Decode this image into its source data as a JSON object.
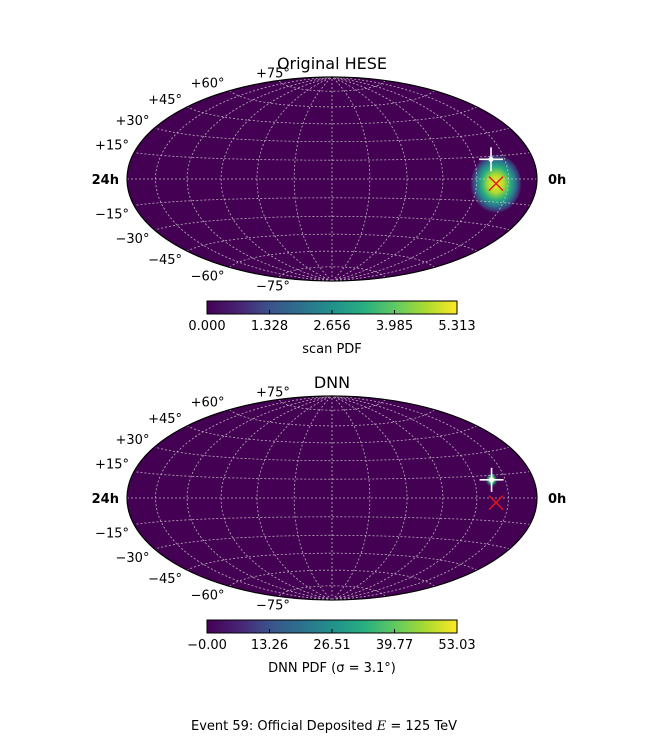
{
  "chart_data": [
    {
      "type": "heatmap",
      "projection": "aitoff",
      "title": "Original HESE",
      "ra_labels": {
        "left": "24h",
        "right": "0h"
      },
      "dec_labels": [
        "+75°",
        "+60°",
        "+45°",
        "+30°",
        "+15°",
        "−15°",
        "−30°",
        "−45°",
        "−60°",
        "−75°"
      ],
      "colorbar": {
        "label": "scan PDF",
        "ticks": [
          "0.000",
          "1.328",
          "2.656",
          "3.985",
          "5.313"
        ],
        "range": [
          0,
          5.313
        ]
      },
      "hotspot": {
        "ra_h": 2.8,
        "dec_deg": -3,
        "peak": 5.313,
        "spread_deg": 12
      },
      "truth_marker": {
        "ra_h": 2.8,
        "dec_deg": -3,
        "symbol": "x",
        "color": "#e8141e"
      },
      "reco_marker": {
        "ra_h": 2.9,
        "dec_deg": 13,
        "symbol": "+",
        "color": "#ffffff"
      },
      "grid": true
    },
    {
      "type": "heatmap",
      "projection": "aitoff",
      "title": "DNN",
      "ra_labels": {
        "left": "24h",
        "right": "0h"
      },
      "dec_labels": [
        "+75°",
        "+60°",
        "+45°",
        "+30°",
        "+15°",
        "−15°",
        "−30°",
        "−45°",
        "−60°",
        "−75°"
      ],
      "colorbar": {
        "label": "DNN PDF (σ = 3.1°)",
        "ticks": [
          "−0.00",
          "13.26",
          "26.51",
          "39.77",
          "53.03"
        ],
        "range": [
          0,
          53.03
        ]
      },
      "hotspot": {
        "ra_h": 2.9,
        "dec_deg": 12,
        "peak": 53.03,
        "spread_deg": 3.1
      },
      "truth_marker": {
        "ra_h": 2.8,
        "dec_deg": -3,
        "symbol": "x",
        "color": "#e8141e"
      },
      "reco_marker": {
        "ra_h": 2.9,
        "dec_deg": 12,
        "symbol": "+",
        "color": "#ffffff"
      },
      "grid": true
    }
  ],
  "caption": "Event 59: Official Deposited E = 125 TeV",
  "caption_parts": {
    "before": "Event 59:  Official Deposited ",
    "var": "E",
    "eq": " = 125 TeV"
  },
  "colors": {
    "viridis_low": "#440154",
    "viridis_mid": "#21918c",
    "viridis_high": "#fde725",
    "frame": "#000000",
    "grid": "#cccccc"
  }
}
